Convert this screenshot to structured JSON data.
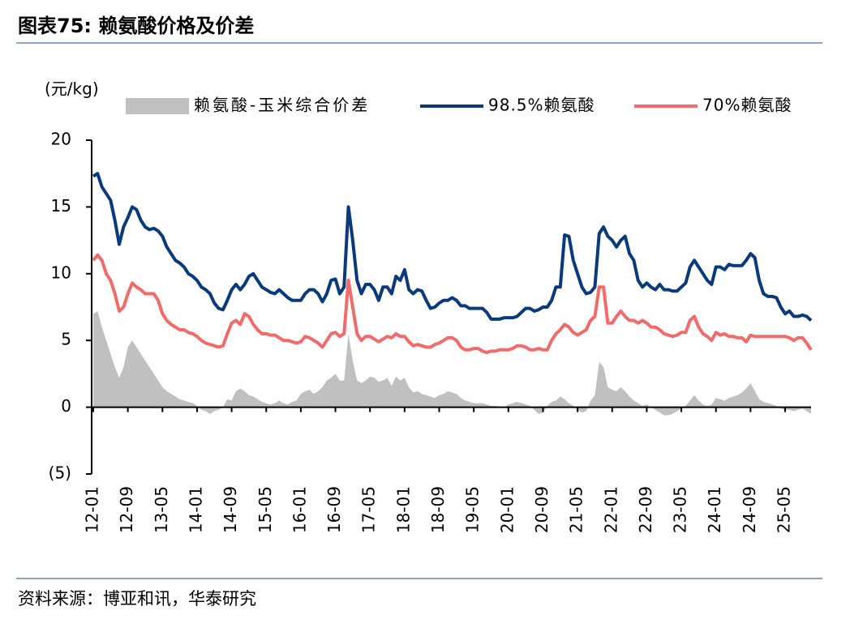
{
  "chart_data": {
    "type": "line",
    "title": "图表75:  赖氨酸价格及价差",
    "y_label": "(元/kg)",
    "source": "资料来源：博亚和讯，华泰研究",
    "ylim": [
      -5,
      20
    ],
    "yticks": [
      20,
      15,
      10,
      5,
      0,
      {
        "value": -5,
        "label": "(5)"
      }
    ],
    "categories": [
      "12-01",
      null,
      null,
      null,
      null,
      null,
      null,
      null,
      "12-09",
      null,
      null,
      null,
      null,
      null,
      null,
      null,
      "13-05",
      null,
      null,
      null,
      null,
      null,
      null,
      null,
      "14-01",
      null,
      null,
      null,
      null,
      null,
      null,
      null,
      "14-09",
      null,
      null,
      null,
      null,
      null,
      null,
      null,
      "15-05",
      null,
      null,
      null,
      null,
      null,
      null,
      null,
      "16-01",
      null,
      null,
      null,
      null,
      null,
      null,
      null,
      "16-09",
      null,
      null,
      null,
      null,
      null,
      null,
      null,
      "17-05",
      null,
      null,
      null,
      null,
      null,
      null,
      null,
      "18-01",
      null,
      null,
      null,
      null,
      null,
      null,
      null,
      "18-09",
      null,
      null,
      null,
      null,
      null,
      null,
      null,
      "19-05",
      null,
      null,
      null,
      null,
      null,
      null,
      null,
      "20-01",
      null,
      null,
      null,
      null,
      null,
      null,
      null,
      "20-09",
      null,
      null,
      null,
      null,
      null,
      null,
      null,
      "21-05",
      null,
      null,
      null,
      null,
      null,
      null,
      null,
      "22-01",
      null,
      null,
      null,
      null,
      null,
      null,
      null,
      "22-09",
      null,
      null,
      null,
      null,
      null,
      null,
      null,
      "23-05",
      null,
      null,
      null,
      null,
      null,
      null,
      null,
      "24-01",
      null,
      null,
      null,
      null,
      null,
      null,
      null,
      "24-09",
      null,
      null,
      null,
      null,
      null,
      null,
      null,
      "25-05",
      null,
      null,
      null,
      null,
      null,
      null
    ],
    "series": [
      {
        "name": "赖氨酸-玉米综合价差",
        "kind": "area",
        "color": "#c0c0c0",
        "values": [
          7.0,
          7.2,
          6.0,
          5.0,
          4.0,
          3.0,
          2.2,
          3.0,
          4.5,
          5.0,
          4.5,
          4.0,
          3.5,
          3.0,
          2.5,
          2.0,
          1.5,
          1.2,
          1.0,
          0.8,
          0.6,
          0.5,
          0.4,
          0.3,
          0.1,
          -0.2,
          -0.3,
          -0.5,
          -0.3,
          -0.2,
          0,
          0.6,
          0.5,
          1.2,
          1.4,
          1.2,
          0.9,
          0.8,
          0.6,
          0.4,
          0.3,
          0.2,
          0.3,
          0.5,
          0.3,
          0.2,
          0.4,
          0.5,
          1.0,
          1.2,
          1.3,
          1.0,
          1.2,
          1.5,
          2.0,
          2.2,
          2.5,
          2.0,
          2.0,
          5.5,
          3.5,
          2.0,
          1.8,
          2.0,
          2.3,
          2.2,
          1.9,
          2.0,
          2.2,
          1.6,
          2.3,
          2.0,
          2.2,
          1.5,
          1.1,
          1.2,
          1.0,
          0.9,
          0.8,
          0.7,
          0.9,
          1.0,
          1.2,
          1.1,
          1.0,
          0.7,
          0.5,
          0.4,
          0.3,
          0.3,
          0.3,
          0.2,
          0.1,
          0.1,
          0.0,
          0.0,
          0.2,
          0.3,
          0.4,
          0.3,
          0.2,
          0.1,
          -0.2,
          -0.5,
          -0.4,
          0.1,
          0.4,
          0.5,
          0.8,
          0.6,
          0.3,
          0.1,
          -0.2,
          -0.4,
          -0.3,
          0.5,
          0.9,
          3.4,
          3.0,
          1.5,
          1.3,
          1.2,
          1.5,
          1.2,
          0.8,
          0.5,
          0.3,
          0.1,
          0.2,
          0.0,
          -0.2,
          -0.4,
          -0.6,
          -0.6,
          -0.5,
          -0.3,
          -0.1,
          0.1,
          0.5,
          0.9,
          0.5,
          0.2,
          0.1,
          0.2,
          0.7,
          0.6,
          0.5,
          0.7,
          0.8,
          0.9,
          1.1,
          1.4,
          1.8,
          1.2,
          0.6,
          0.4,
          0.3,
          0.2,
          0.1,
          -0.1,
          -0.2,
          -0.2,
          -0.3,
          -0.2,
          -0.1,
          -0.3,
          -0.5
        ]
      },
      {
        "name": "98.5%赖氨酸",
        "kind": "line",
        "color": "#0a3a7a",
        "values": [
          17.3,
          17.5,
          16.5,
          16.0,
          15.5,
          14.0,
          12.2,
          13.5,
          14.2,
          15.0,
          14.8,
          14.0,
          13.5,
          13.3,
          13.4,
          13.2,
          12.8,
          12.0,
          11.5,
          11.0,
          10.8,
          10.5,
          10.0,
          9.8,
          9.5,
          9.0,
          8.8,
          8.5,
          7.8,
          7.4,
          7.3,
          8.0,
          8.8,
          9.2,
          8.8,
          9.2,
          9.8,
          10.0,
          9.5,
          9.0,
          8.8,
          8.6,
          8.5,
          8.8,
          8.5,
          8.2,
          8.0,
          8.0,
          8.0,
          8.5,
          8.8,
          8.8,
          8.5,
          7.9,
          8.5,
          9.5,
          9.6,
          8.5,
          9.0,
          15.0,
          12.5,
          9.5,
          8.5,
          9.2,
          9.2,
          8.8,
          8.0,
          9.0,
          9.0,
          8.5,
          9.8,
          9.5,
          10.3,
          8.8,
          8.5,
          8.8,
          8.7,
          8.0,
          7.4,
          7.5,
          7.8,
          8.0,
          8.0,
          8.2,
          8.0,
          7.6,
          7.6,
          7.4,
          7.4,
          7.4,
          7.4,
          7.1,
          6.6,
          6.6,
          6.6,
          6.7,
          6.7,
          6.7,
          6.8,
          7.1,
          7.4,
          7.4,
          7.2,
          7.3,
          7.5,
          7.5,
          8.0,
          9.0,
          9.0,
          12.9,
          12.8,
          11.0,
          10.0,
          9.0,
          8.5,
          8.6,
          9.0,
          13.0,
          13.5,
          12.8,
          12.5,
          12.0,
          12.5,
          12.8,
          11.5,
          11.0,
          9.5,
          9.0,
          9.3,
          9.0,
          8.8,
          9.2,
          8.8,
          8.8,
          8.7,
          8.7,
          9.0,
          9.3,
          10.5,
          11.0,
          10.5,
          10.0,
          9.5,
          9.2,
          10.5,
          10.5,
          10.3,
          10.7,
          10.6,
          10.6,
          10.6,
          11.0,
          11.5,
          11.2,
          9.5,
          8.5,
          8.3,
          8.3,
          8.2,
          7.5,
          7.0,
          7.2,
          6.8,
          6.8,
          6.9,
          6.8,
          6.5
        ]
      },
      {
        "name": "70%赖氨酸",
        "kind": "line",
        "color": "#f26b6b",
        "values": [
          11.0,
          11.4,
          11.0,
          10.0,
          9.5,
          8.5,
          7.2,
          7.5,
          8.5,
          9.3,
          9.0,
          8.8,
          8.5,
          8.5,
          8.5,
          8.0,
          7.0,
          6.5,
          6.2,
          6.0,
          5.8,
          5.8,
          5.6,
          5.5,
          5.3,
          5.0,
          4.8,
          4.7,
          4.6,
          4.5,
          4.6,
          5.5,
          6.3,
          6.5,
          6.2,
          7.0,
          6.8,
          6.2,
          5.8,
          5.5,
          5.5,
          5.4,
          5.4,
          5.2,
          5.0,
          5.0,
          4.9,
          4.8,
          4.9,
          5.3,
          5.2,
          5.0,
          4.8,
          4.5,
          5.0,
          5.5,
          5.6,
          5.3,
          5.5,
          9.5,
          7.5,
          5.5,
          5.0,
          5.3,
          5.3,
          5.1,
          4.9,
          5.1,
          5.3,
          5.2,
          5.5,
          5.3,
          5.3,
          4.9,
          4.6,
          4.7,
          4.6,
          4.5,
          4.5,
          4.7,
          4.8,
          5.0,
          5.2,
          5.2,
          5.0,
          4.5,
          4.3,
          4.3,
          4.4,
          4.4,
          4.2,
          4.1,
          4.2,
          4.2,
          4.3,
          4.3,
          4.3,
          4.4,
          4.6,
          4.6,
          4.5,
          4.3,
          4.3,
          4.4,
          4.3,
          4.3,
          5.0,
          5.5,
          5.8,
          6.2,
          6.0,
          5.6,
          5.4,
          5.6,
          5.8,
          6.5,
          6.8,
          9.0,
          9.0,
          6.3,
          6.3,
          6.8,
          7.2,
          6.8,
          6.5,
          6.5,
          6.3,
          6.5,
          6.3,
          6.0,
          6.0,
          5.8,
          5.5,
          5.4,
          5.3,
          5.4,
          5.6,
          5.6,
          6.5,
          6.8,
          6.0,
          5.5,
          5.3,
          5.0,
          5.6,
          5.4,
          5.5,
          5.3,
          5.3,
          5.2,
          5.2,
          4.9,
          5.4,
          5.3,
          5.3,
          5.3,
          5.3,
          5.3,
          5.3,
          5.3,
          5.3,
          5.2,
          5.0,
          5.2,
          5.2,
          4.8,
          4.3
        ]
      }
    ]
  }
}
